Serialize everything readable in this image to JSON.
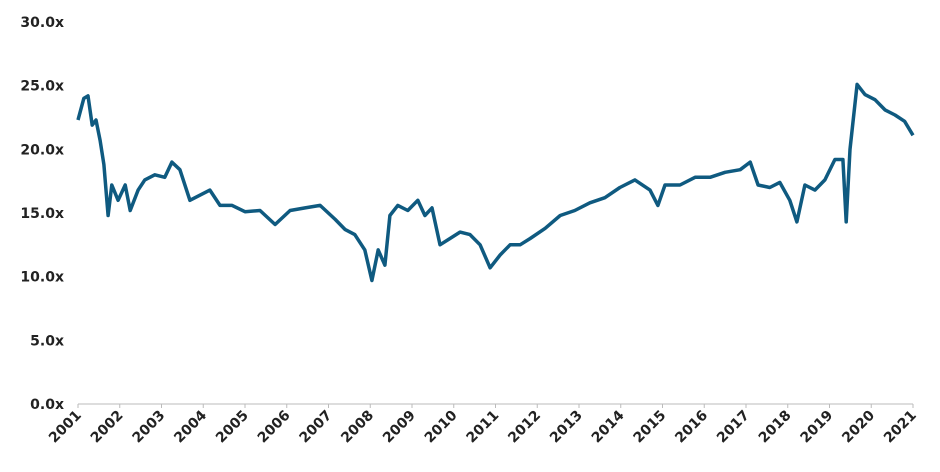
{
  "chart_data": {
    "type": "line",
    "x": [
      2001.0,
      2001.14,
      2001.24,
      2001.34,
      2001.43,
      2001.53,
      2001.62,
      2001.72,
      2001.81,
      2001.96,
      2002.13,
      2002.25,
      2002.44,
      2002.6,
      2002.84,
      2003.08,
      2003.25,
      2003.44,
      2003.68,
      2003.92,
      2004.16,
      2004.4,
      2004.69,
      2005.0,
      2005.36,
      2005.72,
      2006.08,
      2006.44,
      2006.8,
      2007.16,
      2007.4,
      2007.63,
      2007.87,
      2008.04,
      2008.19,
      2008.35,
      2008.47,
      2008.66,
      2008.9,
      2009.14,
      2009.31,
      2009.48,
      2009.67,
      2009.91,
      2010.15,
      2010.39,
      2010.63,
      2010.87,
      2011.11,
      2011.35,
      2011.59,
      2011.83,
      2012.19,
      2012.55,
      2012.9,
      2013.26,
      2013.62,
      2013.98,
      2014.34,
      2014.7,
      2014.89,
      2015.06,
      2015.42,
      2015.78,
      2016.14,
      2016.5,
      2016.86,
      2017.1,
      2017.29,
      2017.57,
      2017.81,
      2018.05,
      2018.22,
      2018.41,
      2018.65,
      2018.89,
      2019.13,
      2019.32,
      2019.4,
      2019.49,
      2019.66,
      2019.85,
      2020.09,
      2020.33,
      2020.57,
      2020.8,
      2021.0
    ],
    "values": [
      22.3,
      24.0,
      24.2,
      21.9,
      22.3,
      20.7,
      18.8,
      14.8,
      17.2,
      16.0,
      17.2,
      15.2,
      16.8,
      17.6,
      18.0,
      17.8,
      19.0,
      18.4,
      16.0,
      16.4,
      16.8,
      15.6,
      15.6,
      15.1,
      15.2,
      14.1,
      15.2,
      15.4,
      15.6,
      14.5,
      13.7,
      13.3,
      12.1,
      9.7,
      12.1,
      10.9,
      14.8,
      15.6,
      15.2,
      16.0,
      14.8,
      15.4,
      12.5,
      13.0,
      13.5,
      13.3,
      12.5,
      10.7,
      11.7,
      12.5,
      12.5,
      13.0,
      13.8,
      14.8,
      15.2,
      15.8,
      16.2,
      17.0,
      17.6,
      16.8,
      15.6,
      17.2,
      17.2,
      17.8,
      17.8,
      18.2,
      18.4,
      19.0,
      17.2,
      17.0,
      17.4,
      16.0,
      14.3,
      17.2,
      16.8,
      17.6,
      19.2,
      19.2,
      14.3,
      20.0,
      25.1,
      24.3,
      23.9,
      23.1,
      22.7,
      22.2,
      21.1
    ],
    "color": "#0f5a80",
    "xlim": [
      2001,
      2021
    ],
    "xticks": [
      2001,
      2002,
      2003,
      2004,
      2005,
      2006,
      2007,
      2008,
      2009,
      2010,
      2011,
      2012,
      2013,
      2014,
      2015,
      2016,
      2017,
      2018,
      2019,
      2020,
      2021
    ],
    "ylim": [
      0,
      30
    ],
    "yticks": [
      {
        "value": 0,
        "label": "0.0x"
      },
      {
        "value": 5,
        "label": "5.0x"
      },
      {
        "value": 10,
        "label": "10.0x"
      },
      {
        "value": 15,
        "label": "15.0x"
      },
      {
        "value": 20,
        "label": "20.0x"
      },
      {
        "value": 25,
        "label": "25.0x"
      },
      {
        "value": 30,
        "label": "30.0x"
      }
    ],
    "grid": false
  }
}
